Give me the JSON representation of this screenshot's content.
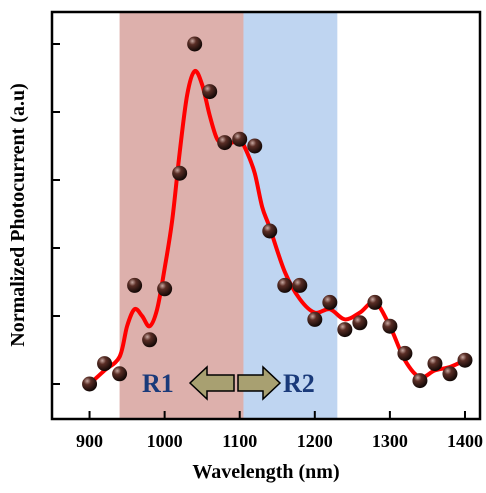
{
  "chart_data": {
    "type": "scatter",
    "xlabel": "Wavelength (nm)",
    "ylabel": "Normalized Photocurrent (a.u)",
    "xlim": [
      850,
      1420
    ],
    "ylim": [
      0,
      1.05
    ],
    "x_ticks": [
      900,
      1000,
      1100,
      1200,
      1300,
      1400
    ],
    "x_tick_labels": [
      "900",
      "1000",
      "1100",
      "1200",
      "1300",
      "1400"
    ],
    "y_tick_count": 6,
    "grid": false,
    "regions": [
      {
        "label": "R1",
        "x_start": 940,
        "x_end": 1105,
        "color": "#d9a7a3"
      },
      {
        "label": "R2",
        "x_start": 1105,
        "x_end": 1230,
        "color": "#b8d0ef"
      }
    ],
    "arrows": {
      "left_color": "#a8a071",
      "right_color": "#a8a071"
    },
    "points": {
      "x": [
        900,
        920,
        940,
        960,
        980,
        1000,
        1020,
        1040,
        1060,
        1080,
        1100,
        1120,
        1140,
        1160,
        1180,
        1200,
        1220,
        1240,
        1260,
        1280,
        1300,
        1320,
        1340,
        1360,
        1380,
        1400
      ],
      "y": [
        0.0,
        0.06,
        0.03,
        0.29,
        0.13,
        0.28,
        0.62,
        1.0,
        0.86,
        0.71,
        0.72,
        0.7,
        0.45,
        0.29,
        0.29,
        0.19,
        0.24,
        0.16,
        0.18,
        0.24,
        0.17,
        0.09,
        0.01,
        0.06,
        0.03,
        0.07
      ],
      "color": "#2a1410"
    },
    "fit_line": {
      "x": [
        900,
        920,
        940,
        950,
        960,
        970,
        980,
        990,
        1000,
        1010,
        1020,
        1030,
        1040,
        1050,
        1060,
        1070,
        1080,
        1090,
        1100,
        1110,
        1120,
        1130,
        1140,
        1160,
        1180,
        1200,
        1220,
        1240,
        1260,
        1280,
        1300,
        1320,
        1340,
        1360,
        1380,
        1400
      ],
      "y": [
        0.0,
        0.04,
        0.08,
        0.17,
        0.22,
        0.2,
        0.17,
        0.22,
        0.34,
        0.48,
        0.68,
        0.85,
        0.92,
        0.88,
        0.79,
        0.72,
        0.71,
        0.71,
        0.72,
        0.68,
        0.62,
        0.52,
        0.46,
        0.33,
        0.25,
        0.21,
        0.22,
        0.19,
        0.21,
        0.24,
        0.17,
        0.07,
        0.02,
        0.04,
        0.05,
        0.07
      ],
      "color": "#ff0000"
    }
  }
}
